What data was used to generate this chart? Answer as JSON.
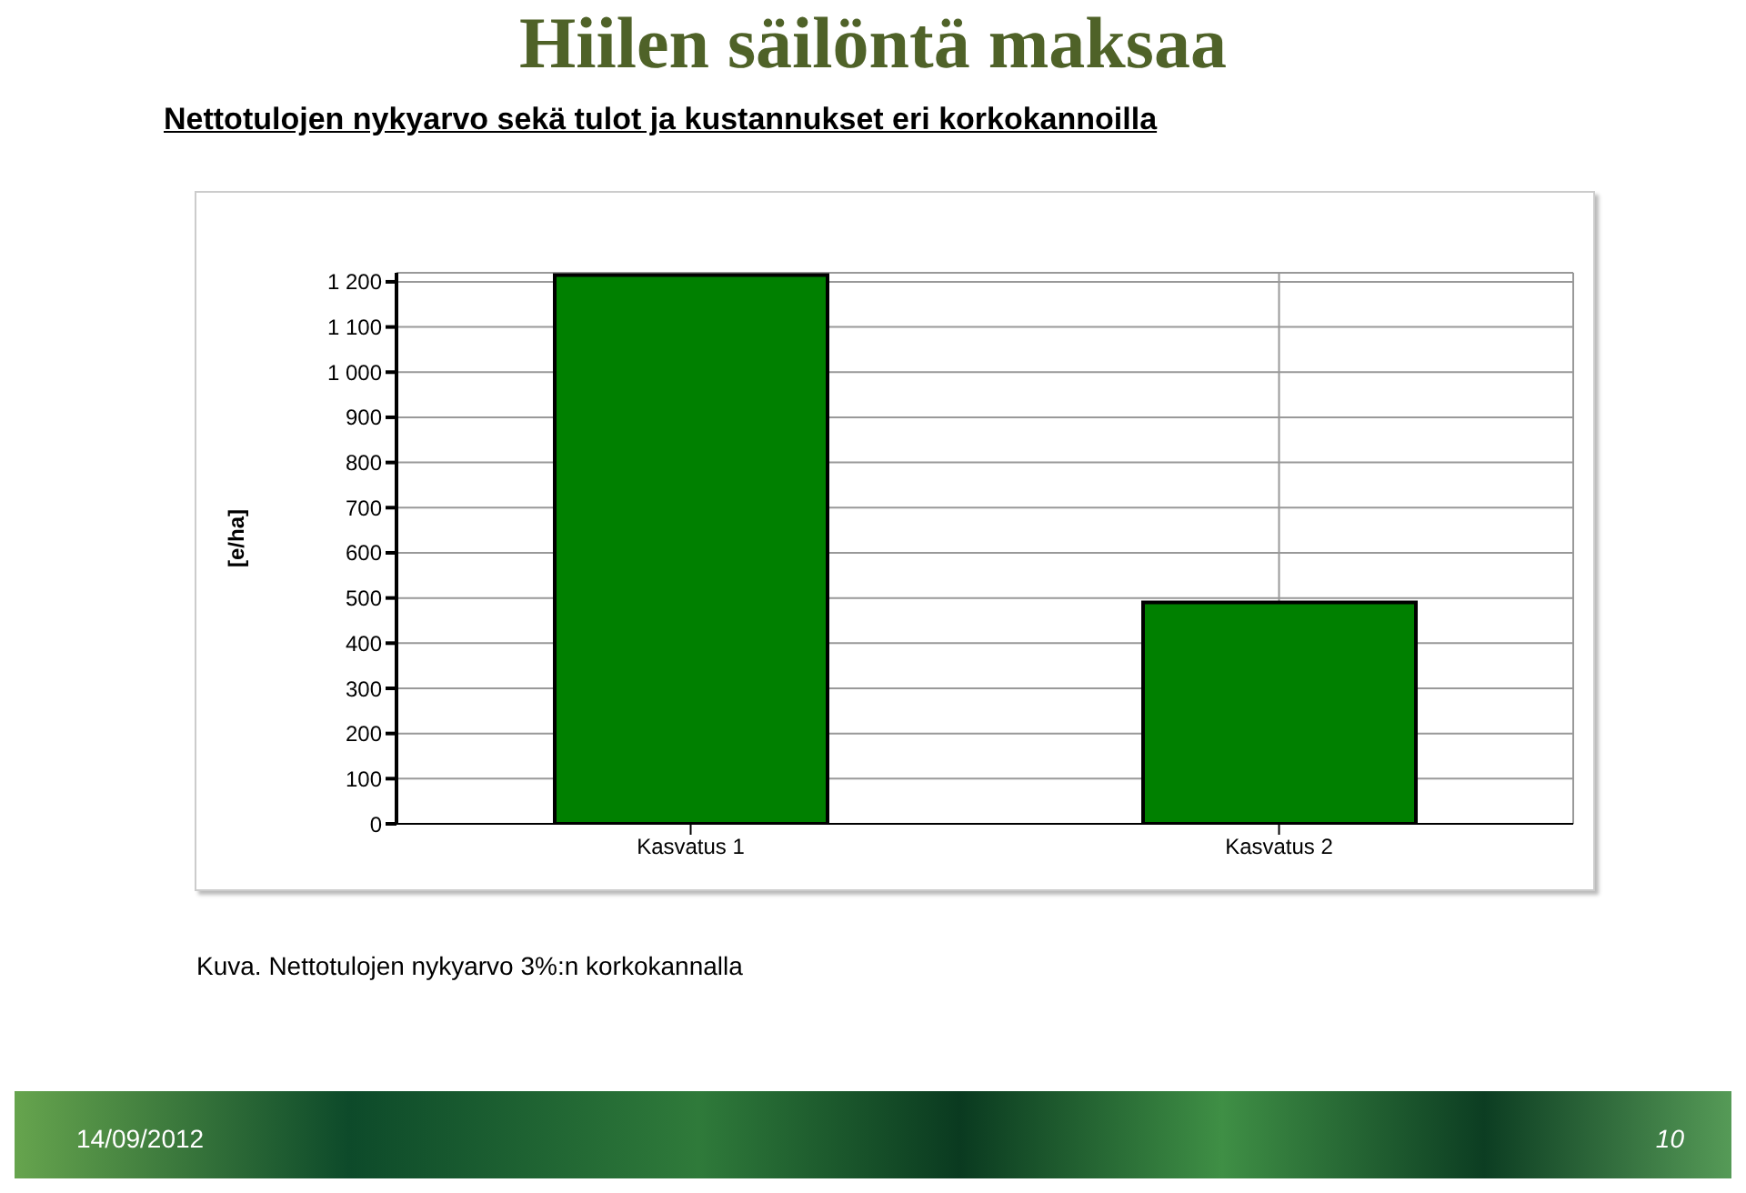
{
  "chart_data": {
    "type": "bar",
    "title": "Hiilen säilöntä maksaa",
    "subtitle": "Nettotulojen nykyarvo sekä tulot ja kustannukset eri korkokannoilla",
    "ylabel": "[e/ha]",
    "categories": [
      "Kasvatus 1",
      "Kasvatus 2"
    ],
    "values": [
      1215,
      490
    ],
    "color": "#008000",
    "ylim": [
      0,
      1220
    ],
    "yticks": [
      0,
      100,
      200,
      300,
      400,
      500,
      600,
      700,
      800,
      900,
      {
        "value": 1000,
        "label": "1 000"
      },
      {
        "value": 1100,
        "label": "1 100"
      },
      {
        "value": 1200,
        "label": "1 200"
      }
    ],
    "grid": true,
    "legend": false,
    "annotations": [
      "Kuva. Nettotulojen nykyarvo 3%:n korkokannalla",
      "14/09/2012",
      "10"
    ]
  }
}
